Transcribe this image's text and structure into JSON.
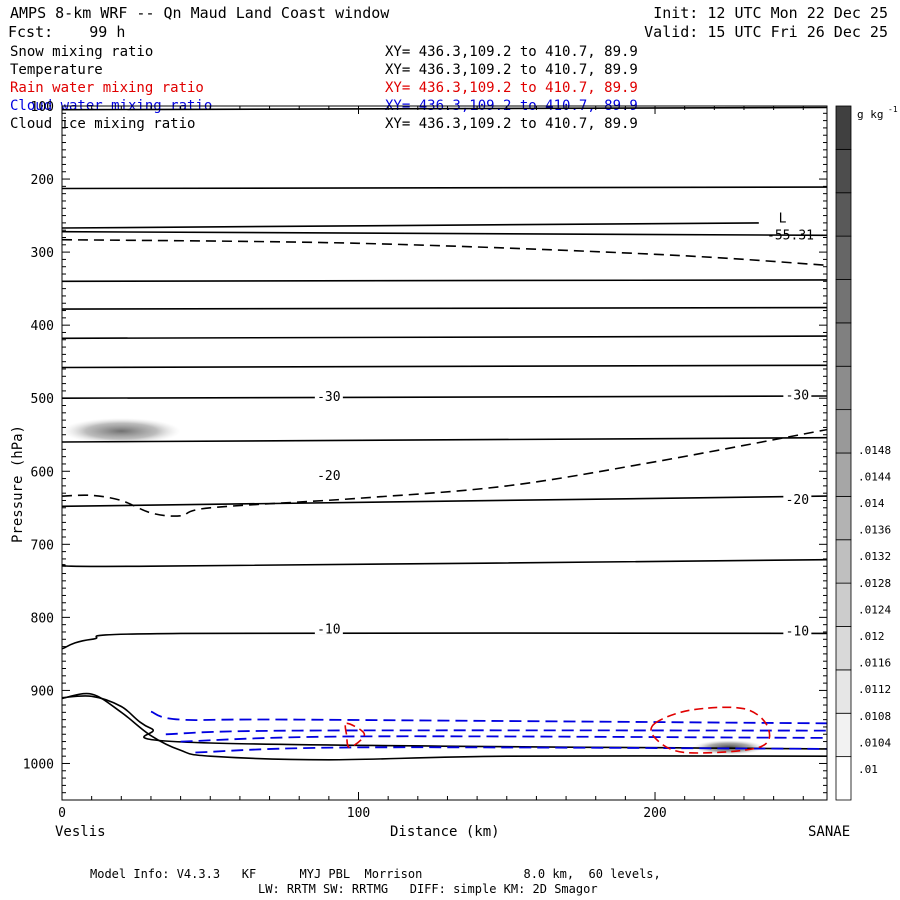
{
  "header": {
    "title": "AMPS 8-km WRF -- Qn Maud Land Coast window",
    "forecast": "Fcst:    99 h",
    "init": "Init: 12 UTC Mon 22 Dec 25",
    "valid": "Valid: 15 UTC Fri 26 Dec 25"
  },
  "fields": [
    {
      "name": "Snow mixing ratio",
      "xy": "XY= 436.3,109.2 to 410.7, 89.9",
      "color": "#000000"
    },
    {
      "name": "Temperature",
      "xy": "XY= 436.3,109.2 to 410.7, 89.9",
      "color": "#000000"
    },
    {
      "name": "Rain water mixing ratio",
      "xy": "XY= 436.3,109.2 to 410.7, 89.9",
      "color": "#e00000"
    },
    {
      "name": "Cloud water mixing ratio",
      "xy": "XY= 436.3,109.2 to 410.7, 89.9",
      "color": "#0000e0"
    },
    {
      "name": "Cloud ice mixing ratio",
      "xy": "XY= 436.3,109.2 to 410.7, 89.9",
      "color": "#000000"
    }
  ],
  "footer": {
    "line1": "Model Info: V4.3.3   KF      MYJ PBL  Morrison              8.0 km,  60 levels,",
    "line2": "LW: RRTM SW: RRTMG   DIFF: simple KM: 2D Smagor"
  },
  "chart_data": {
    "type": "contour",
    "xlabel": "Distance (km)",
    "ylabel": "Pressure (hPa)",
    "xlim": [
      0,
      258
    ],
    "ylim": [
      1050,
      100
    ],
    "x_ticks": [
      0,
      100,
      200
    ],
    "y_ticks": [
      100,
      200,
      300,
      400,
      500,
      600,
      700,
      800,
      900,
      1000
    ],
    "left_endpoint": "Veslis",
    "right_endpoint": "SANAE",
    "colorbar": {
      "unit": "g kg",
      "unit_exp": "-1",
      "tick_labels": [
        ".01",
        ".0104",
        ".0108",
        ".0112",
        ".0116",
        ".012",
        ".0124",
        ".0128",
        ".0132",
        ".0136",
        ".014",
        ".0144",
        ".0148"
      ],
      "levels": 16
    },
    "temperature_labels": [
      {
        "text": "-30",
        "x": 90,
        "p": 497
      },
      {
        "text": "-30",
        "x": 248,
        "p": 495
      },
      {
        "text": "-20",
        "x": 90,
        "p": 605
      },
      {
        "text": "-20",
        "x": 248,
        "p": 638
      },
      {
        "text": "-10",
        "x": 90,
        "p": 815
      },
      {
        "text": "-10",
        "x": 248,
        "p": 818
      }
    ],
    "low_marker": {
      "text": "L",
      "value": "-55.31",
      "x": 243,
      "p": 262
    },
    "temperature_isotherms": [
      [
        [
          0,
          105
        ],
        [
          258,
          102
        ]
      ],
      [
        [
          0,
          213
        ],
        [
          258,
          211
        ]
      ],
      [
        [
          0,
          267
        ],
        [
          235,
          260
        ]
      ],
      [
        [
          0,
          272
        ],
        [
          258,
          277
        ]
      ],
      [
        [
          0,
          340
        ],
        [
          258,
          338
        ]
      ],
      [
        [
          0,
          378
        ],
        [
          258,
          376
        ]
      ],
      [
        [
          0,
          418
        ],
        [
          258,
          415
        ]
      ],
      [
        [
          0,
          458
        ],
        [
          258,
          455
        ]
      ],
      [
        [
          0,
          500
        ],
        [
          258,
          497
        ]
      ],
      [
        [
          0,
          560
        ],
        [
          258,
          554
        ]
      ],
      [
        [
          0,
          648
        ],
        [
          258,
          634
        ]
      ],
      [
        [
          0,
          728
        ],
        [
          30,
          730
        ],
        [
          258,
          721
        ]
      ],
      [
        [
          0,
          843
        ],
        [
          10,
          830
        ],
        [
          40,
          822
        ],
        [
          258,
          822
        ]
      ],
      [
        [
          0,
          910
        ],
        [
          10,
          908
        ],
        [
          20,
          922
        ],
        [
          30,
          952
        ],
        [
          50,
          972
        ],
        [
          258,
          980
        ]
      ]
    ],
    "tropopause_dashed": [
      [
        0,
        283
      ],
      [
        100,
        288
      ],
      [
        200,
        303
      ],
      [
        258,
        318
      ]
    ],
    "freezing_dashed": [
      [
        0,
        634
      ],
      [
        10,
        633
      ],
      [
        20,
        640
      ],
      [
        30,
        657
      ],
      [
        40,
        661
      ],
      [
        50,
        650
      ],
      [
        100,
        637
      ],
      [
        150,
        620
      ],
      [
        200,
        587
      ],
      [
        258,
        543
      ]
    ],
    "terrain": [
      [
        0,
        911
      ],
      [
        10,
        905
      ],
      [
        20,
        930
      ],
      [
        30,
        962
      ],
      [
        40,
        982
      ],
      [
        50,
        990
      ],
      [
        90,
        995
      ],
      [
        150,
        990
      ],
      [
        258,
        990
      ]
    ],
    "cloud_water_dashed": [
      [
        [
          30,
          929
        ],
        [
          40,
          940
        ],
        [
          80,
          940
        ],
        [
          258,
          945
        ]
      ],
      [
        [
          35,
          960
        ],
        [
          80,
          955
        ],
        [
          258,
          955
        ]
      ],
      [
        [
          40,
          970
        ],
        [
          100,
          963
        ],
        [
          258,
          965
        ]
      ],
      [
        [
          45,
          985
        ],
        [
          100,
          978
        ],
        [
          258,
          980
        ]
      ]
    ],
    "rain_water_dashed": [
      [
        [
          96,
          945
        ],
        [
          102,
          960
        ],
        [
          97,
          978
        ],
        [
          96,
          962
        ]
      ],
      [
        [
          200,
          945
        ],
        [
          212,
          927
        ],
        [
          230,
          925
        ],
        [
          238,
          950
        ],
        [
          235,
          978
        ],
        [
          210,
          985
        ],
        [
          200,
          965
        ]
      ]
    ],
    "snow_shading": [
      {
        "x": 20,
        "p": 545,
        "rx": 20,
        "rp": 18,
        "level": 0.7
      },
      {
        "x": 225,
        "p": 978,
        "rx": 12,
        "rp": 10,
        "level": 0.9
      }
    ]
  }
}
